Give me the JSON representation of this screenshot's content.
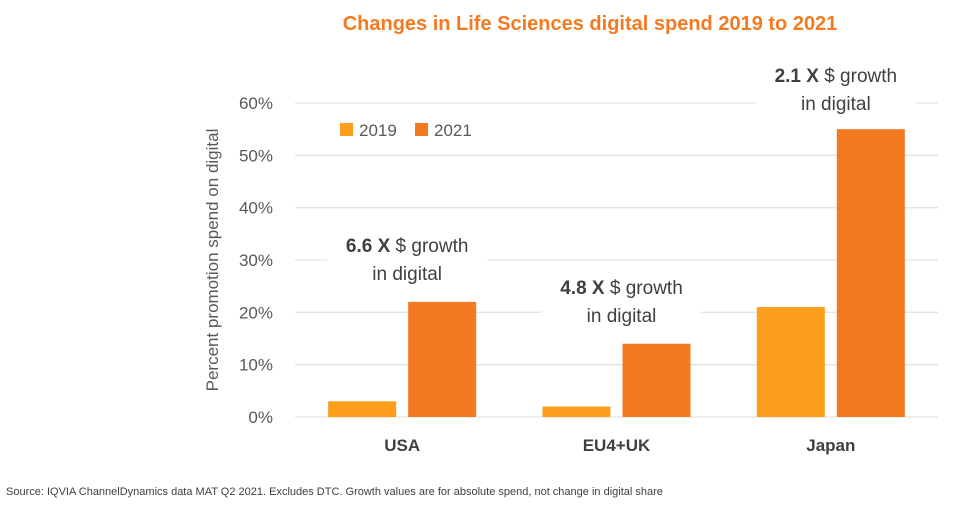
{
  "chart_data": {
    "type": "bar",
    "title": "Changes in Life Sciences digital spend 2019 to 2021",
    "xlabel": "",
    "ylabel": "Percent promotion spend on digital",
    "categories": [
      "USA",
      "EU4+UK",
      "Japan"
    ],
    "series": [
      {
        "name": "2019",
        "color": "#fc9d1c",
        "values": [
          3,
          2,
          21
        ]
      },
      {
        "name": "2021",
        "color": "#f47a22",
        "values": [
          22,
          14,
          55
        ]
      }
    ],
    "ylim": [
      0,
      60
    ],
    "yticks": [
      0,
      10,
      20,
      30,
      40,
      50,
      60
    ],
    "ytick_labels": [
      "0%",
      "10%",
      "20%",
      "30%",
      "40%",
      "50%",
      "60%"
    ],
    "grid": true,
    "legend": {
      "position": "top-left",
      "entries": [
        "2019",
        "2021"
      ]
    },
    "annotations": [
      {
        "category": "USA",
        "bold": "6.6 X",
        "line1": " $ growth",
        "line2": "in digital"
      },
      {
        "category": "EU4+UK",
        "bold": "4.8 X",
        "line1": " $ growth",
        "line2": "in digital"
      },
      {
        "category": "Japan",
        "bold": "2.1 X",
        "line1": " $ growth",
        "line2": "in digital"
      }
    ]
  },
  "source_note": "Source: IQVIA ChannelDynamics data MAT Q2 2021. Excludes DTC. Growth values are for absolute spend, not change in digital share"
}
